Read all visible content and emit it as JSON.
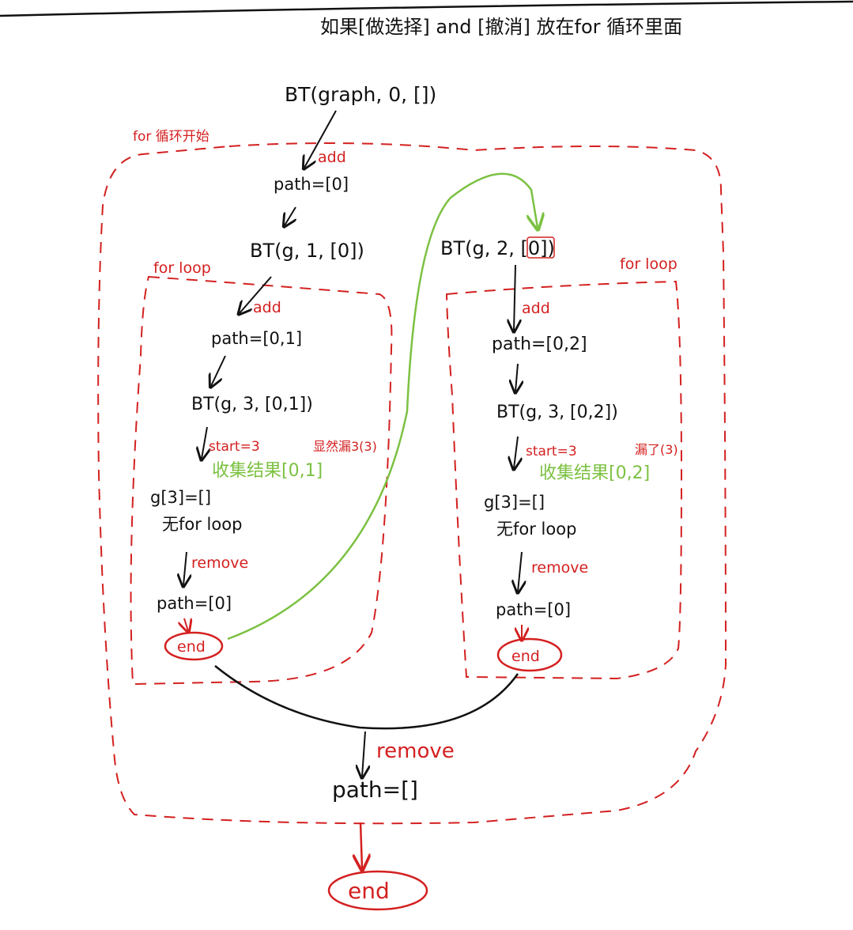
{
  "title": "如果[做选择] and [撤消] 放在for 循环里面",
  "labels": {
    "for_start": "for 循环开始",
    "for_loop_left": "for loop",
    "for_loop_right": "for loop"
  },
  "left_branch": {
    "root_call": "BT(graph, 0, [])",
    "add_1": "add",
    "path_1": "path=[0]",
    "call_1": "BT(g, 1, [0])",
    "add_2": "add",
    "path_2": "path=[0,1]",
    "call_2": "BT(g, 3, [0,1])",
    "start_note": "start=3",
    "missing_note": "显然漏3(3)",
    "collect": "收集结果[0,1]",
    "g3": "g[3]=[]",
    "no_loop": "无for loop",
    "remove": "remove",
    "path_after": "path=[0]",
    "end": "end"
  },
  "right_branch": {
    "call_1": "BT(g, 2, [0])",
    "add": "add",
    "path_1": "path=[0,2]",
    "call_2": "BT(g, 3, [0,2])",
    "start_note": "start=3",
    "missing_note": "漏了(3)",
    "collect": "收集结果[0,2]",
    "g3": "g[3]=[]",
    "no_loop": "无for loop",
    "remove": "remove",
    "path_after": "path=[0]",
    "end": "end"
  },
  "bottom": {
    "remove": "remove",
    "path": "path=[]",
    "end": "end"
  },
  "colors": {
    "ink": "#111111",
    "red": "#d42020",
    "green": "#7cc142"
  }
}
